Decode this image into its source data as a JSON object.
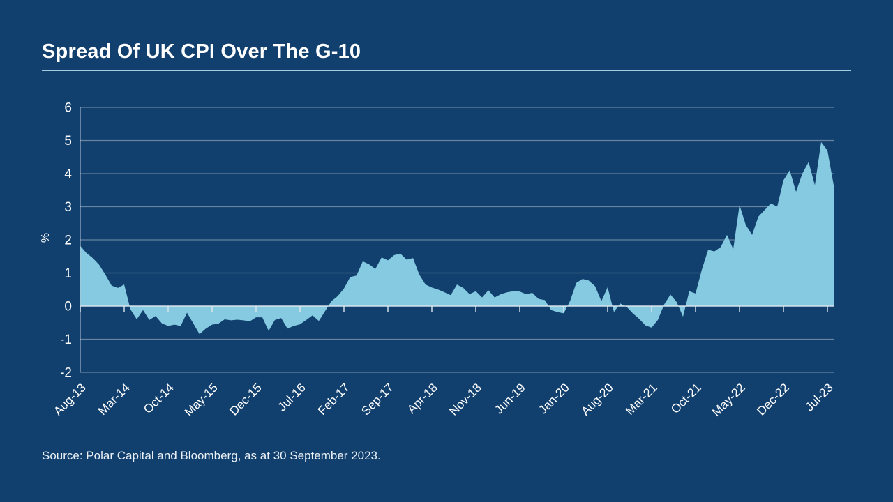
{
  "page": {
    "title": "Spread Of UK CPI Over The G-10",
    "source": "Source: Polar Capital and Bloomberg, as at 30 September 2023."
  },
  "colors": {
    "background": "#113F6E",
    "area_fill": "#85CAE1",
    "gridline": "#AEBDD0",
    "zero_line": "#DDE6EE",
    "axis_line": "#B9C6D6",
    "title_underline": "#A5CCDD",
    "text": "#FFFFFF"
  },
  "chart_data": {
    "type": "area",
    "title": "Spread Of UK CPI Over The G-10",
    "ylabel": "%",
    "xlabel": "",
    "ylim": [
      -2,
      6
    ],
    "yticks": [
      6,
      5,
      4,
      3,
      2,
      1,
      0,
      -1,
      -2
    ],
    "grid": "horizontal",
    "legend": "none",
    "x_start": "Aug-13",
    "x_end": "Aug-23",
    "x_frequency": "monthly",
    "x_tick_interval_months": 7,
    "x_tick_labels": [
      "Aug-13",
      "Mar-14",
      "Oct-14",
      "May-15",
      "Dec-15",
      "Jul-16",
      "Feb-17",
      "Sep-17",
      "Apr-18",
      "Nov-18",
      "Jun-19",
      "Jan-20",
      "Aug-20",
      "Mar-21",
      "Oct-21",
      "May-22",
      "Dec-22",
      "Jul-23"
    ],
    "values": [
      1.82,
      1.6,
      1.45,
      1.25,
      0.95,
      0.62,
      0.55,
      0.65,
      -0.1,
      -0.4,
      -0.12,
      -0.42,
      -0.3,
      -0.52,
      -0.6,
      -0.56,
      -0.6,
      -0.2,
      -0.52,
      -0.85,
      -0.68,
      -0.56,
      -0.53,
      -0.4,
      -0.43,
      -0.41,
      -0.43,
      -0.46,
      -0.34,
      -0.34,
      -0.75,
      -0.42,
      -0.36,
      -0.68,
      -0.6,
      -0.55,
      -0.42,
      -0.28,
      -0.45,
      -0.15,
      0.15,
      0.3,
      0.53,
      0.88,
      0.92,
      1.35,
      1.26,
      1.12,
      1.47,
      1.38,
      1.54,
      1.58,
      1.4,
      1.45,
      0.95,
      0.65,
      0.56,
      0.5,
      0.42,
      0.33,
      0.65,
      0.55,
      0.36,
      0.45,
      0.26,
      0.48,
      0.26,
      0.36,
      0.42,
      0.45,
      0.44,
      0.36,
      0.4,
      0.22,
      0.18,
      -0.12,
      -0.18,
      -0.22,
      0.15,
      0.7,
      0.82,
      0.77,
      0.6,
      0.15,
      0.57,
      -0.18,
      0.08,
      -0.02,
      -0.22,
      -0.38,
      -0.58,
      -0.65,
      -0.42,
      0.05,
      0.35,
      0.12,
      -0.32,
      0.45,
      0.38,
      1.1,
      1.7,
      1.65,
      1.78,
      2.15,
      1.72,
      3.05,
      2.45,
      2.15,
      2.7,
      2.9,
      3.1,
      3.0,
      3.8,
      4.1,
      3.45,
      4.0,
      4.35,
      3.65,
      4.95,
      4.7,
      3.65
    ]
  }
}
